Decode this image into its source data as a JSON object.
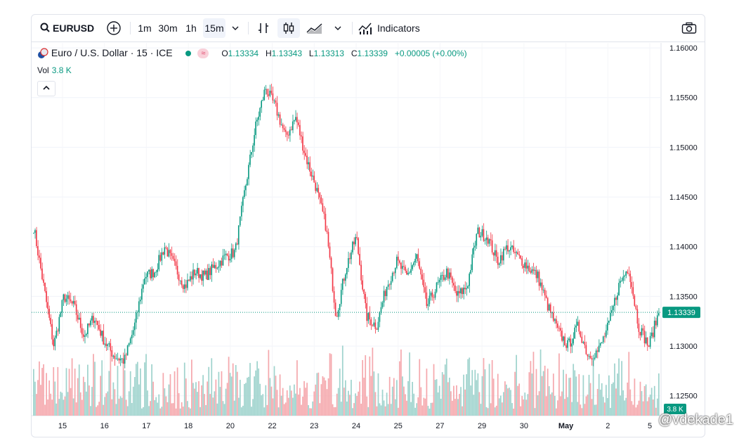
{
  "toolbar": {
    "symbol": "EURUSD",
    "intervals": [
      "1m",
      "30m",
      "1h",
      "15m"
    ],
    "selected_interval": "15m",
    "indicators_label": "Indicators"
  },
  "legend": {
    "title": "Euro / U.S. Dollar · 15 · ICE",
    "open_label": "O",
    "open": "1.13334",
    "high_label": "H",
    "high": "1.13343",
    "low_label": "L",
    "low": "1.13313",
    "close_label": "C",
    "close": "1.13339",
    "change": "+0.00005 (+0.00%)",
    "vol_label": "Vol",
    "vol_value": "3.8 K"
  },
  "watermark": "@vdekade1",
  "colors": {
    "up": "#089981",
    "down": "#f23645",
    "up_vol": "#9fd3cd",
    "down_vol": "#f5a8ad"
  },
  "chart_data": {
    "type": "candlestick",
    "title": "Euro / U.S. Dollar · 15 · ICE",
    "y_ticks": [
      "1.16000",
      "1.15500",
      "1.15000",
      "1.14500",
      "1.14000",
      "1.13500",
      "1.13000",
      "1.12500"
    ],
    "ylim": [
      1.123,
      1.1605
    ],
    "x_ticks": [
      "15",
      "16",
      "17",
      "18",
      "20",
      "22",
      "23",
      "24",
      "25",
      "27",
      "29",
      "30",
      "May",
      "2",
      "5"
    ],
    "last_price": "1.13339",
    "last_volume": "3.8 K",
    "price_path": [
      {
        "day": "14",
        "price": 1.142
      },
      {
        "day": "14",
        "price": 1.136
      },
      {
        "day": "14",
        "price": 1.13
      },
      {
        "day": "14",
        "price": 1.135
      },
      {
        "day": "15",
        "price": 1.134
      },
      {
        "day": "15",
        "price": 1.131
      },
      {
        "day": "15",
        "price": 1.133
      },
      {
        "day": "15",
        "price": 1.1305
      },
      {
        "day": "16",
        "price": 1.129
      },
      {
        "day": "16",
        "price": 1.1285
      },
      {
        "day": "16",
        "price": 1.132
      },
      {
        "day": "16",
        "price": 1.137
      },
      {
        "day": "17",
        "price": 1.1375
      },
      {
        "day": "17",
        "price": 1.14
      },
      {
        "day": "17",
        "price": 1.138
      },
      {
        "day": "17",
        "price": 1.136
      },
      {
        "day": "18",
        "price": 1.1375
      },
      {
        "day": "18",
        "price": 1.137
      },
      {
        "day": "18",
        "price": 1.138
      },
      {
        "day": "18",
        "price": 1.139
      },
      {
        "day": "20",
        "price": 1.1395
      },
      {
        "day": "20",
        "price": 1.146
      },
      {
        "day": "20",
        "price": 1.152
      },
      {
        "day": "21",
        "price": 1.156
      },
      {
        "day": "21",
        "price": 1.154
      },
      {
        "day": "21",
        "price": 1.151
      },
      {
        "day": "22",
        "price": 1.153
      },
      {
        "day": "22",
        "price": 1.149
      },
      {
        "day": "22",
        "price": 1.146
      },
      {
        "day": "22",
        "price": 1.142
      },
      {
        "day": "23",
        "price": 1.133
      },
      {
        "day": "23",
        "price": 1.138
      },
      {
        "day": "23",
        "price": 1.141
      },
      {
        "day": "24",
        "price": 1.133
      },
      {
        "day": "24",
        "price": 1.132
      },
      {
        "day": "24",
        "price": 1.136
      },
      {
        "day": "25",
        "price": 1.1385
      },
      {
        "day": "25",
        "price": 1.137
      },
      {
        "day": "25",
        "price": 1.139
      },
      {
        "day": "25",
        "price": 1.134
      },
      {
        "day": "27",
        "price": 1.136
      },
      {
        "day": "27",
        "price": 1.1375
      },
      {
        "day": "27",
        "price": 1.135
      },
      {
        "day": "28",
        "price": 1.136
      },
      {
        "day": "28",
        "price": 1.1415
      },
      {
        "day": "29",
        "price": 1.141
      },
      {
        "day": "29",
        "price": 1.1385
      },
      {
        "day": "29",
        "price": 1.14
      },
      {
        "day": "30",
        "price": 1.139
      },
      {
        "day": "30",
        "price": 1.138
      },
      {
        "day": "30",
        "price": 1.137
      },
      {
        "day": "30",
        "price": 1.134
      },
      {
        "day": "May",
        "price": 1.1315
      },
      {
        "day": "May",
        "price": 1.13
      },
      {
        "day": "May",
        "price": 1.132
      },
      {
        "day": "May",
        "price": 1.129
      },
      {
        "day": "2",
        "price": 1.1295
      },
      {
        "day": "2",
        "price": 1.132
      },
      {
        "day": "2",
        "price": 1.136
      },
      {
        "day": "2",
        "price": 1.138
      },
      {
        "day": "2",
        "price": 1.132
      },
      {
        "day": "5",
        "price": 1.13
      },
      {
        "day": "5",
        "price": 1.1334
      }
    ]
  }
}
